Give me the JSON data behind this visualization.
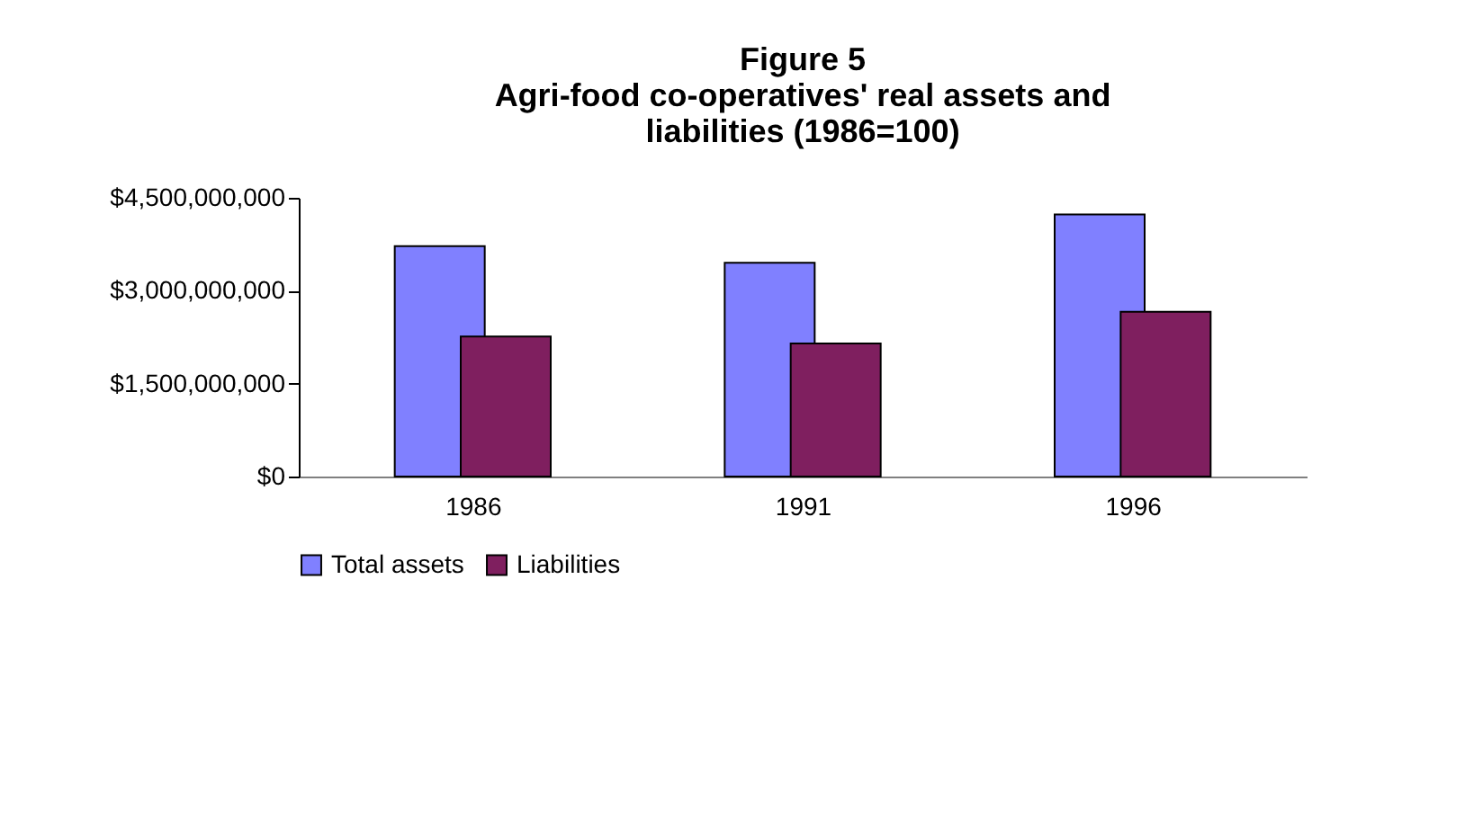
{
  "chart_data": {
    "type": "bar",
    "title": [
      "Figure 5",
      "Agri-food co-operatives' real assets and",
      "liabilities (1986=100)"
    ],
    "categories": [
      "1986",
      "1991",
      "1996"
    ],
    "series": [
      {
        "name": "Total assets",
        "color": "#8080ff",
        "values": [
          3720000000,
          3450000000,
          4230000000
        ]
      },
      {
        "name": "Liabilities",
        "color": "#7f1f5f",
        "values": [
          2260000000,
          2150000000,
          2660000000
        ]
      }
    ],
    "ylim": [
      0,
      4500000000
    ],
    "yticks": [
      {
        "value": 0,
        "label": "$0"
      },
      {
        "value": 1500000000,
        "label": "$1,500,000,000"
      },
      {
        "value": 3000000000,
        "label": "$3,000,000,000"
      },
      {
        "value": 4500000000,
        "label": "$4,500,000,000"
      }
    ],
    "grid": false,
    "legend": "bottom"
  }
}
